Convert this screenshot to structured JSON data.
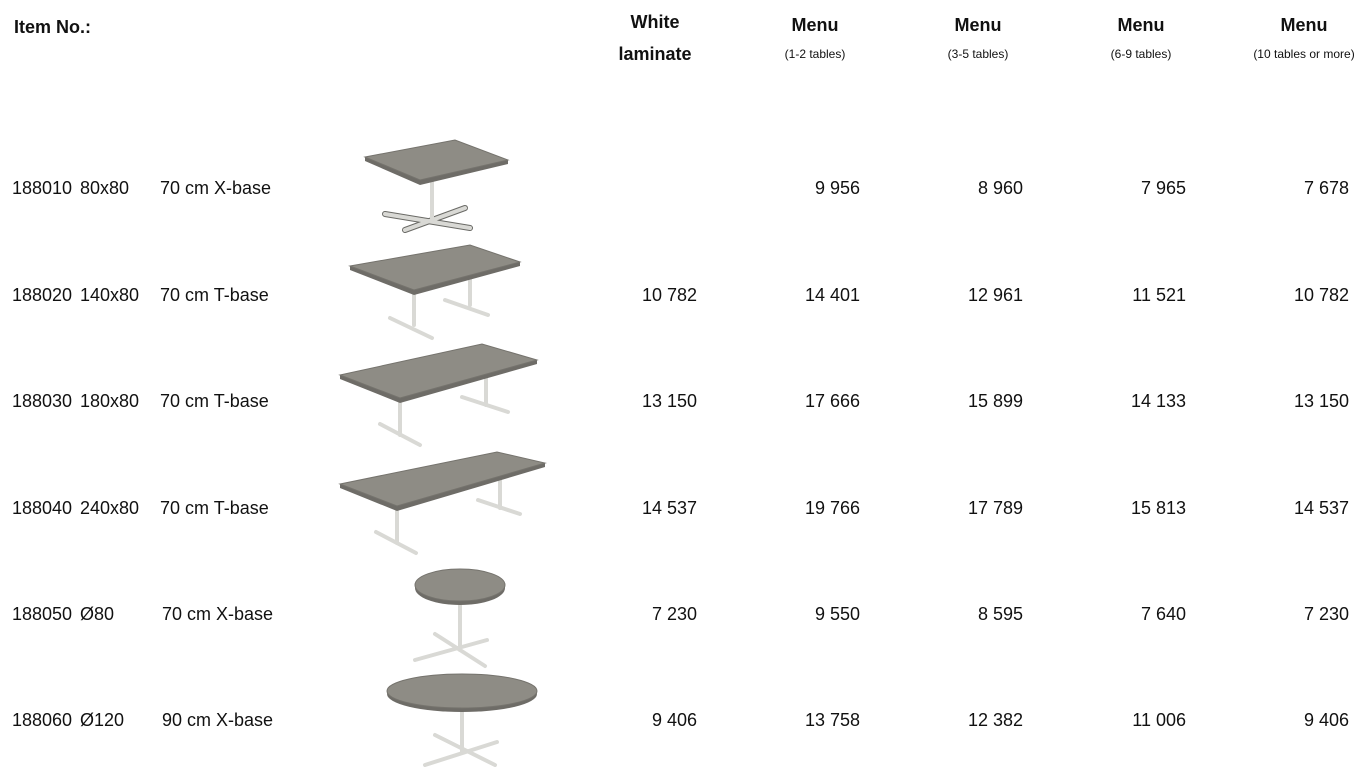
{
  "header": {
    "item_no": "Item No.:",
    "white_laminate": [
      "White",
      "laminate"
    ],
    "menu_columns": [
      {
        "title": "Menu",
        "note": "(1-2 tables)"
      },
      {
        "title": "Menu",
        "note": "(3-5 tables)"
      },
      {
        "title": "Menu",
        "note": "(6-9 tables)"
      },
      {
        "title": "Menu",
        "note": "(10 tables or more)"
      }
    ]
  },
  "rows": [
    {
      "item": "188010",
      "size": "80x80",
      "description": "70 cm X-base",
      "white_laminate": null,
      "prices": [
        "9 956",
        "8 960",
        "7 965",
        "7 678"
      ]
    },
    {
      "item": "188020",
      "size": "140x80",
      "description": "70 cm T-base",
      "white_laminate": "10 782",
      "prices": [
        "14 401",
        "12 961",
        "11 521",
        "10 782"
      ]
    },
    {
      "item": "188030",
      "size": "180x80",
      "description": "70 cm T-base",
      "white_laminate": "13 150",
      "prices": [
        "17 666",
        "15 899",
        "14 133",
        "13 150"
      ]
    },
    {
      "item": "188040",
      "size": "240x80",
      "description": "70 cm T-base",
      "white_laminate": "14 537",
      "prices": [
        "19 766",
        "17 789",
        "15 813",
        "14 537"
      ]
    },
    {
      "item": "188050",
      "size": "Ø80",
      "description": "70 cm X-base",
      "white_laminate": "7 230",
      "prices": [
        "9 550",
        "8 595",
        "7 640",
        "7 230"
      ]
    },
    {
      "item": "188060",
      "size": "Ø120",
      "description": "90 cm X-base",
      "white_laminate": "9 406",
      "prices": [
        "13 758",
        "12 382",
        "11 006",
        "9 406"
      ]
    }
  ]
}
